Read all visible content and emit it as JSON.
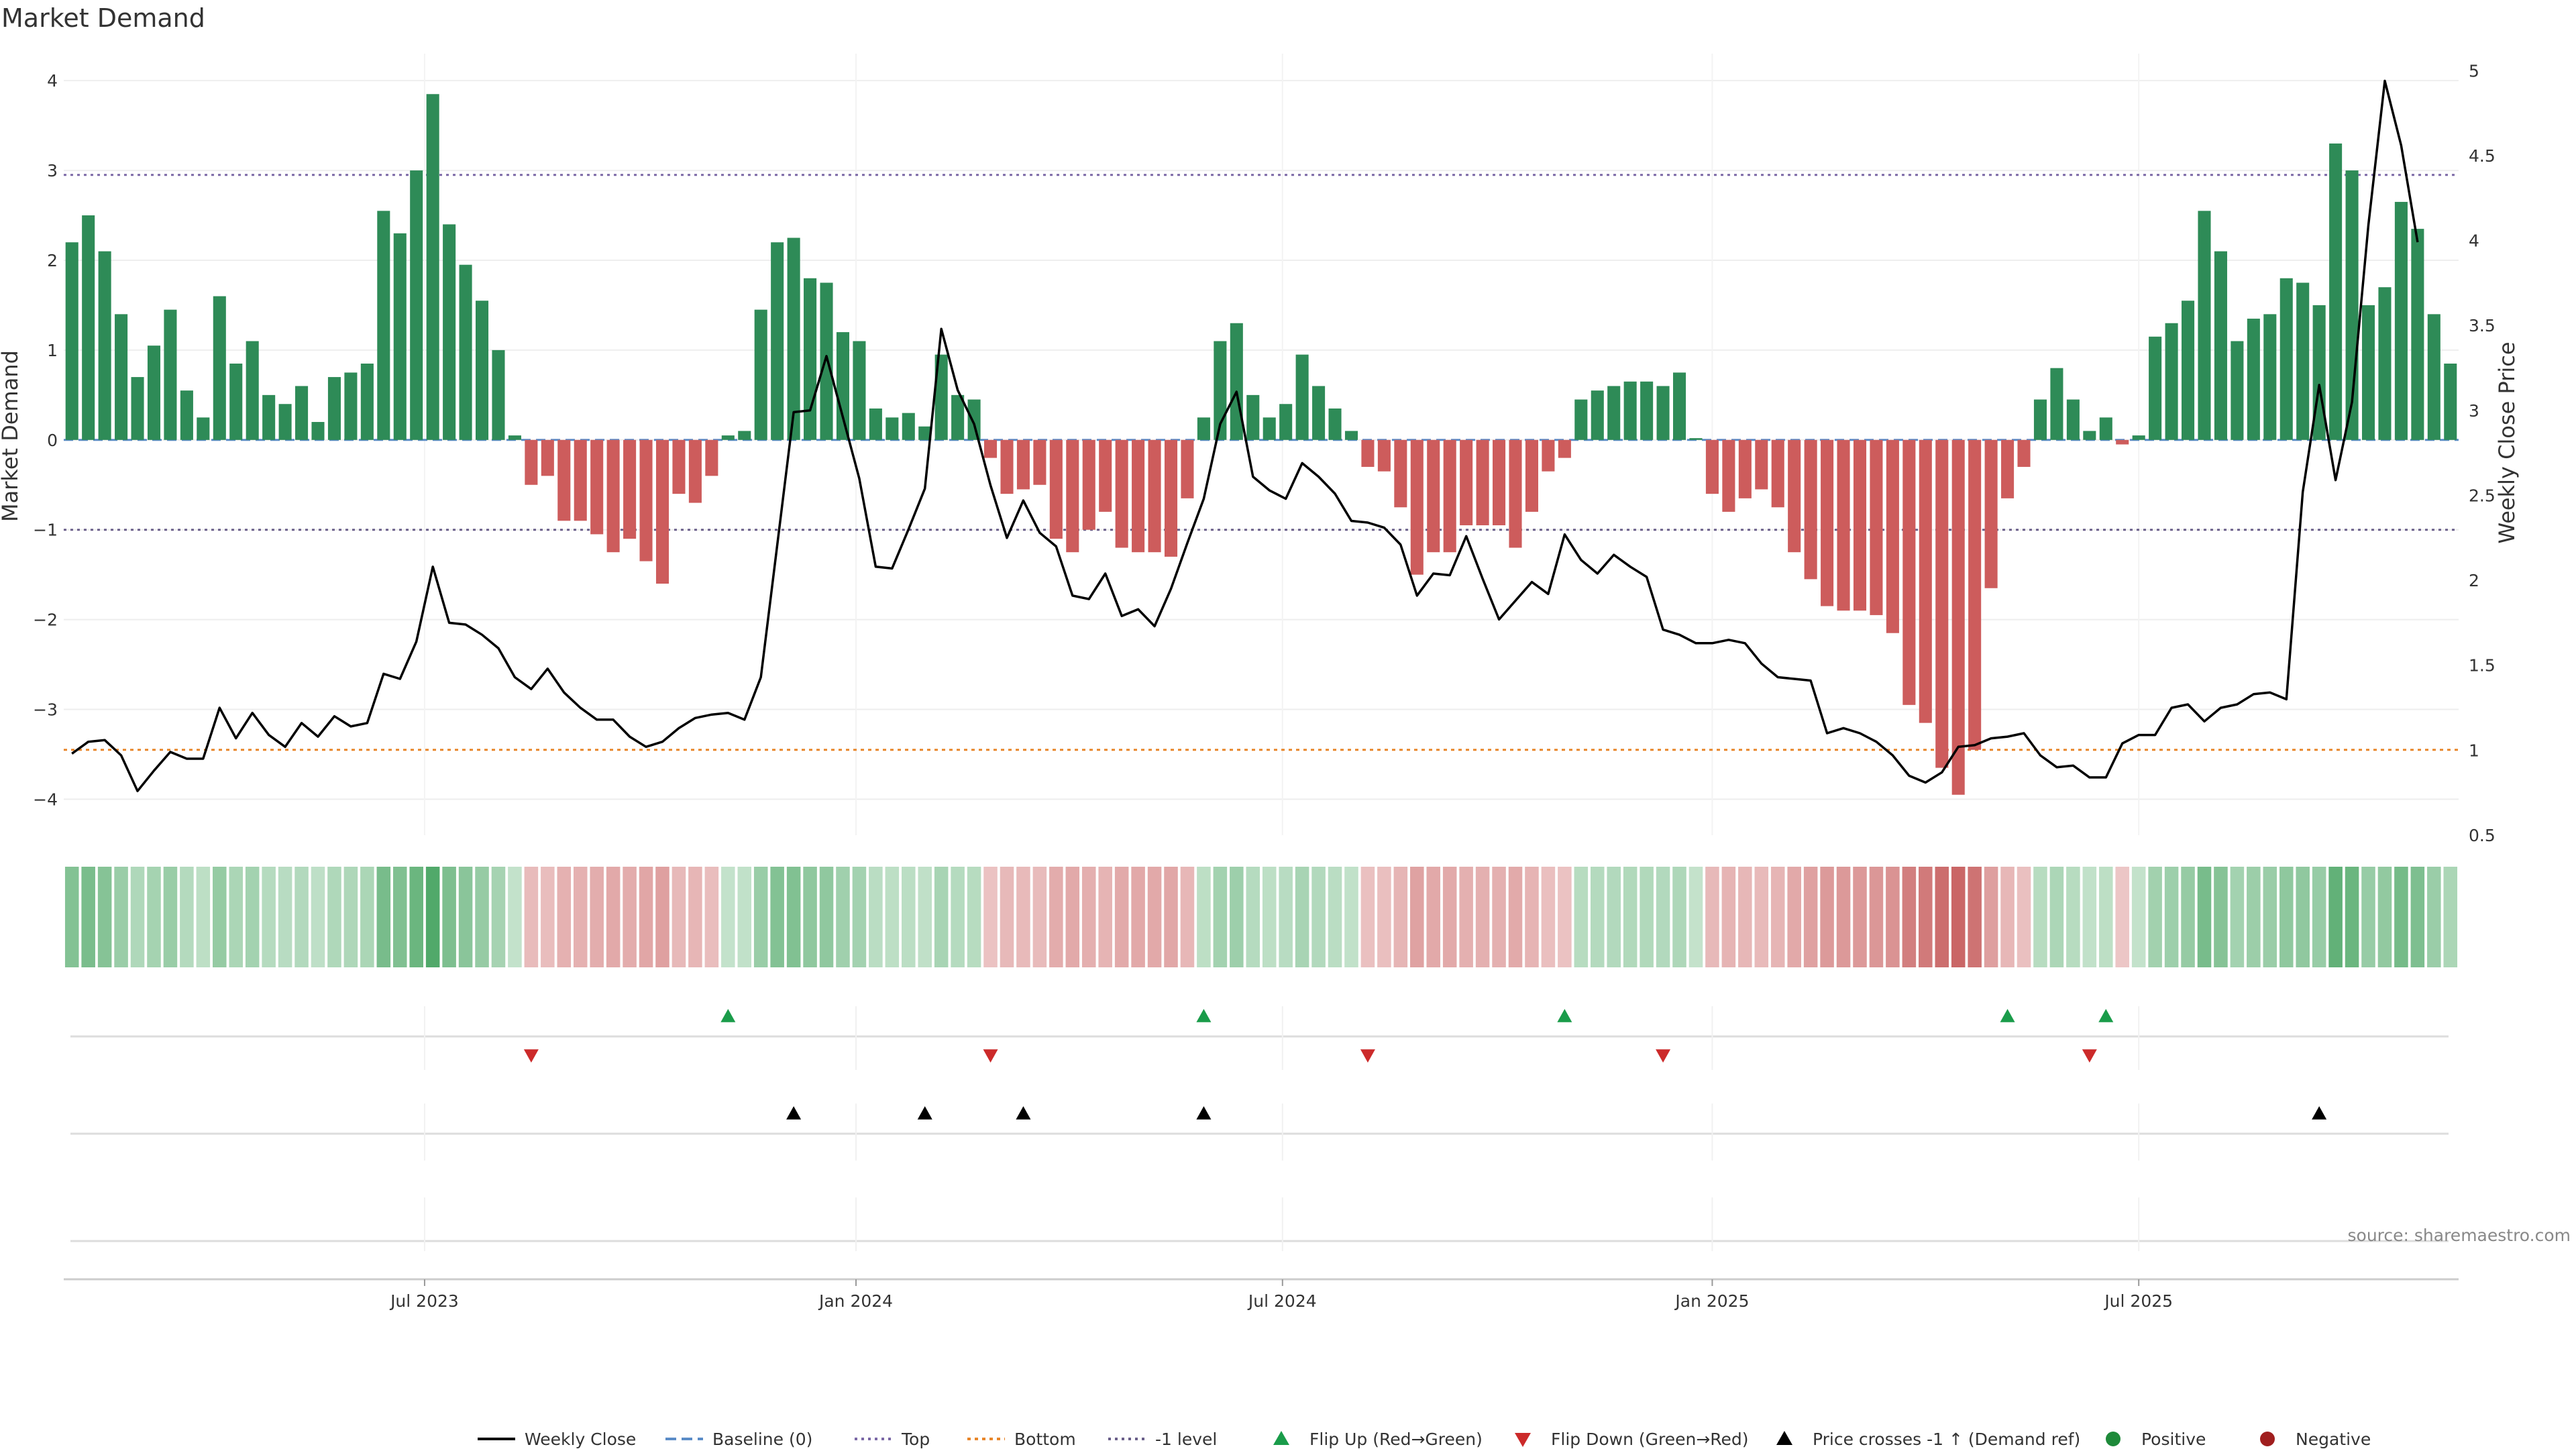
{
  "chart_data": {
    "type": "bar",
    "title": "Market Demand",
    "ylabel": "Market Demand",
    "y2label": "Weekly Close Price",
    "ylim": [
      -4.4,
      4.3
    ],
    "y2lim": [
      0.5,
      5.1
    ],
    "yticks": [
      4,
      3,
      2,
      1,
      0,
      -1,
      -2,
      -3,
      -4
    ],
    "yticklabels": [
      "4",
      "3",
      "2",
      "1",
      "0",
      "−1",
      "−2",
      "−3",
      "−4"
    ],
    "y2ticks": [
      5,
      4.5,
      4,
      3.5,
      3,
      2.5,
      2,
      1.5,
      1,
      0.5
    ],
    "y2ticklabels": [
      "5",
      "4.5",
      "4",
      "3.5",
      "3",
      "2.5",
      "2",
      "1.5",
      "1",
      "0.5"
    ],
    "xticks": [
      {
        "index": 21.5,
        "label": "Jul 2023"
      },
      {
        "index": 47.8,
        "label": "Jan 2024"
      },
      {
        "index": 73.8,
        "label": "Jul 2024"
      },
      {
        "index": 100,
        "label": "Jan 2025"
      },
      {
        "index": 126,
        "label": "Jul 2025"
      }
    ],
    "reference_lines": {
      "baseline": 0,
      "top": 2.95,
      "bottom": -3.45,
      "minus_one": -1
    },
    "positive_color": "#2e8b57",
    "negative_color": "#cd5c5c",
    "price_color": "#000000",
    "top_color": "#7b68a6",
    "bottom_color": "#e8862a",
    "flip_up_color": "#1a9c4a",
    "flip_down_color": "#cc2a2a",
    "demand": [
      2.2,
      2.5,
      2.1,
      1.4,
      0.7,
      1.05,
      1.45,
      0.55,
      0.25,
      1.6,
      0.85,
      1.1,
      0.5,
      0.4,
      0.6,
      0.2,
      0.7,
      0.75,
      0.85,
      2.55,
      2.3,
      3.0,
      3.85,
      2.4,
      1.95,
      1.55,
      1.0,
      0.05,
      -0.5,
      -0.4,
      -0.9,
      -0.9,
      -1.05,
      -1.25,
      -1.1,
      -1.35,
      -1.6,
      -0.6,
      -0.7,
      -0.4,
      0.05,
      0.1,
      1.45,
      2.2,
      2.25,
      1.8,
      1.75,
      1.2,
      1.1,
      0.35,
      0.25,
      0.3,
      0.15,
      0.95,
      0.5,
      0.45,
      -0.2,
      -0.6,
      -0.55,
      -0.5,
      -1.1,
      -1.25,
      -1.0,
      -0.8,
      -1.2,
      -1.25,
      -1.25,
      -1.3,
      -0.65,
      0.25,
      1.1,
      1.3,
      0.5,
      0.25,
      0.4,
      0.95,
      0.6,
      0.35,
      0.1,
      -0.3,
      -0.35,
      -0.75,
      -1.5,
      -1.25,
      -1.25,
      -0.95,
      -0.95,
      -0.95,
      -1.2,
      -0.8,
      -0.35,
      -0.2,
      0.45,
      0.55,
      0.6,
      0.65,
      0.65,
      0.6,
      0.75,
      0.02,
      -0.6,
      -0.8,
      -0.65,
      -0.55,
      -0.75,
      -1.25,
      -1.55,
      -1.85,
      -1.9,
      -1.9,
      -1.95,
      -2.15,
      -2.95,
      -3.15,
      -3.65,
      -3.95,
      -3.45,
      -1.65,
      -0.65,
      -0.3,
      0.45,
      0.8,
      0.45,
      0.1,
      0.25,
      -0.05,
      0.05,
      1.15,
      1.3,
      1.55,
      2.55,
      2.1,
      1.1,
      1.35,
      1.4,
      1.8,
      1.75,
      1.5,
      3.3,
      3.0,
      1.5,
      1.7,
      2.65,
      2.35,
      1.4,
      0.85
    ],
    "weekly_close": [
      0.98,
      1.05,
      1.06,
      0.97,
      0.76,
      0.88,
      0.99,
      0.95,
      0.95,
      1.25,
      1.07,
      1.22,
      1.09,
      1.02,
      1.16,
      1.08,
      1.2,
      1.14,
      1.16,
      1.45,
      1.42,
      1.64,
      2.08,
      1.75,
      1.74,
      1.68,
      1.6,
      1.43,
      1.36,
      1.48,
      1.34,
      1.25,
      1.18,
      1.18,
      1.08,
      1.02,
      1.05,
      1.13,
      1.19,
      1.21,
      1.22,
      1.18,
      1.43,
      2.21,
      2.99,
      3.0,
      3.32,
      2.96,
      2.6,
      2.08,
      2.07,
      2.3,
      2.54,
      3.48,
      3.12,
      2.92,
      2.56,
      2.25,
      2.47,
      2.28,
      2.2,
      1.91,
      1.89,
      2.04,
      1.79,
      1.83,
      1.73,
      1.95,
      2.22,
      2.48,
      2.92,
      3.11,
      2.61,
      2.53,
      2.48,
      2.69,
      2.61,
      2.51,
      2.35,
      2.34,
      2.31,
      2.21,
      1.91,
      2.04,
      2.03,
      2.26,
      2.01,
      1.77,
      1.88,
      1.99,
      1.92,
      2.27,
      2.12,
      2.04,
      2.15,
      2.08,
      2.02,
      1.71,
      1.68,
      1.63,
      1.63,
      1.65,
      1.63,
      1.51,
      1.43,
      1.42,
      1.41,
      1.1,
      1.13,
      1.1,
      1.05,
      0.97,
      0.85,
      0.81,
      0.87,
      1.02,
      1.03,
      1.07,
      1.08,
      1.1,
      0.97,
      0.9,
      0.91,
      0.84,
      0.84,
      1.04,
      1.09,
      1.09,
      1.25,
      1.27,
      1.17,
      1.25,
      1.27,
      1.33,
      1.34,
      1.3,
      2.52,
      3.15,
      2.59,
      3.05,
      4.09,
      4.94,
      4.56,
      3.99
    ],
    "flip_up": [
      40,
      69,
      91,
      118,
      124
    ],
    "flip_down": [
      28,
      56,
      79,
      97,
      123
    ],
    "price_crosses": [
      44,
      52,
      58,
      69,
      137
    ],
    "legend": [
      {
        "key": "weekly_close",
        "label": "Weekly Close"
      },
      {
        "key": "baseline",
        "label": "Baseline (0)"
      },
      {
        "key": "top",
        "label": "Top"
      },
      {
        "key": "bottom",
        "label": "Bottom"
      },
      {
        "key": "minus_one",
        "label": "-1 level"
      },
      {
        "key": "flip_up",
        "label": "Flip Up (Red→Green)"
      },
      {
        "key": "flip_down",
        "label": "Flip Down (Green→Red)"
      },
      {
        "key": "price_cross",
        "label": "Price crosses -1 ↑ (Demand ref)"
      },
      {
        "key": "positive",
        "label": "Positive"
      },
      {
        "key": "negative",
        "label": "Negative"
      }
    ],
    "source": "source: sharemaestro.com"
  }
}
